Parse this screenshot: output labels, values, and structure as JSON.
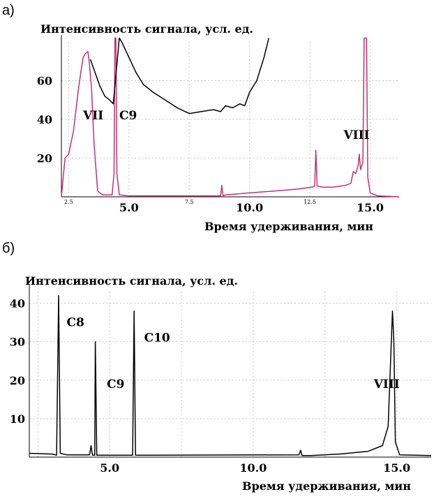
{
  "panels": {
    "a": {
      "label": "а)"
    },
    "b": {
      "label": "б)"
    }
  },
  "chart_data": [
    {
      "type": "line",
      "ylabel": "Интенсивность сигнала, усл. ед.",
      "xlabel": "Время удерживания, мин",
      "xlim": [
        2.2,
        16.2
      ],
      "ylim": [
        0,
        80
      ],
      "y_ticks": [
        20,
        40,
        60
      ],
      "x_ticks": [
        5.0,
        10.0,
        15.0
      ],
      "x_minor_tick_labels": [
        {
          "x": 2.5,
          "label": "2.5"
        },
        {
          "x": 7.5,
          "label": "7.5"
        },
        {
          "x": 12.5,
          "label": "12.5"
        }
      ],
      "grid": true,
      "series": [
        {
          "color": "#c4326f",
          "points": [
            [
              2.2,
              0
            ],
            [
              2.35,
              20
            ],
            [
              2.5,
              22
            ],
            [
              2.7,
              34
            ],
            [
              2.9,
              55
            ],
            [
              3.0,
              64
            ],
            [
              3.1,
              72
            ],
            [
              3.2,
              74
            ],
            [
              3.3,
              75
            ],
            [
              3.35,
              70
            ],
            [
              3.45,
              56
            ],
            [
              3.55,
              28
            ],
            [
              3.7,
              3
            ],
            [
              3.9,
              1
            ],
            [
              4.3,
              1
            ],
            [
              4.38,
              12
            ],
            [
              4.42,
              82
            ],
            [
              4.46,
              82
            ],
            [
              4.5,
              12
            ],
            [
              4.6,
              1
            ],
            [
              5.0,
              0.5
            ],
            [
              8.8,
              0.5
            ],
            [
              8.85,
              6
            ],
            [
              8.9,
              0.5
            ],
            [
              9.0,
              1
            ],
            [
              10.0,
              2
            ],
            [
              11.0,
              3
            ],
            [
              12.0,
              4
            ],
            [
              12.6,
              5
            ],
            [
              12.7,
              5.5
            ],
            [
              12.75,
              24
            ],
            [
              12.8,
              5.5
            ],
            [
              13.0,
              5
            ],
            [
              13.5,
              5
            ],
            [
              14.0,
              6
            ],
            [
              14.2,
              7
            ],
            [
              14.3,
              13
            ],
            [
              14.4,
              12
            ],
            [
              14.5,
              16
            ],
            [
              14.55,
              22
            ],
            [
              14.6,
              14
            ],
            [
              14.7,
              18
            ],
            [
              14.75,
              82
            ],
            [
              14.85,
              82
            ],
            [
              14.9,
              10
            ],
            [
              15.0,
              2
            ],
            [
              15.3,
              0.5
            ],
            [
              16.2,
              0
            ]
          ]
        },
        {
          "color": "#000000",
          "points": [
            [
              3.4,
              71
            ],
            [
              3.6,
              64
            ],
            [
              3.8,
              57
            ],
            [
              4.0,
              52
            ],
            [
              4.2,
              50
            ],
            [
              4.35,
              48
            ],
            [
              4.6,
              82
            ],
            [
              4.7,
              80
            ],
            [
              5.0,
              72
            ],
            [
              5.3,
              64
            ],
            [
              5.6,
              58
            ],
            [
              6.0,
              54
            ],
            [
              6.5,
              50
            ],
            [
              7.0,
              46
            ],
            [
              7.5,
              43
            ],
            [
              8.0,
              44
            ],
            [
              8.5,
              45
            ],
            [
              8.8,
              44
            ],
            [
              9.0,
              47
            ],
            [
              9.3,
              46
            ],
            [
              9.6,
              48
            ],
            [
              9.8,
              47
            ],
            [
              10.0,
              54
            ],
            [
              10.3,
              60
            ],
            [
              10.6,
              72
            ],
            [
              10.8,
              82
            ]
          ]
        }
      ],
      "annotations": [
        {
          "text": "VII",
          "x": 3.1,
          "y": 40
        },
        {
          "text": "C9",
          "x": 4.6,
          "y": 40
        },
        {
          "text": "VIII",
          "x": 13.9,
          "y": 30
        }
      ]
    },
    {
      "type": "line",
      "ylabel": "Интенсивность сигнала, усл. ед.",
      "xlabel": "Время удерживания, мин",
      "xlim": [
        2.2,
        16.2
      ],
      "ylim": [
        0,
        43
      ],
      "y_ticks": [
        10,
        20,
        30,
        40
      ],
      "x_ticks": [
        5.0,
        10.0,
        15.0
      ],
      "grid": true,
      "series": [
        {
          "color": "#000000",
          "points": [
            [
              2.2,
              1
            ],
            [
              3.0,
              0.8
            ],
            [
              3.15,
              0.5
            ],
            [
              3.22,
              42
            ],
            [
              3.28,
              1
            ],
            [
              3.5,
              0.6
            ],
            [
              4.3,
              0.6
            ],
            [
              4.35,
              3
            ],
            [
              4.4,
              0.5
            ],
            [
              4.48,
              0.5
            ],
            [
              4.5,
              30
            ],
            [
              4.55,
              0.5
            ],
            [
              5.8,
              0.5
            ],
            [
              5.85,
              38
            ],
            [
              5.9,
              0.5
            ],
            [
              6.5,
              0.5
            ],
            [
              11.6,
              0.6
            ],
            [
              11.65,
              1.8
            ],
            [
              11.7,
              0.4
            ],
            [
              12.0,
              0.4
            ],
            [
              13.0,
              0.8
            ],
            [
              14.0,
              1.5
            ],
            [
              14.5,
              3
            ],
            [
              14.7,
              8
            ],
            [
              14.8,
              28
            ],
            [
              14.85,
              38
            ],
            [
              14.9,
              30
            ],
            [
              14.95,
              4
            ],
            [
              15.1,
              0.6
            ],
            [
              16.2,
              0.4
            ]
          ]
        }
      ],
      "annotations": [
        {
          "text": "C8",
          "x": 3.5,
          "y": 34
        },
        {
          "text": "C9",
          "x": 4.9,
          "y": 18
        },
        {
          "text": "C10",
          "x": 6.2,
          "y": 30
        },
        {
          "text": "VIII",
          "x": 14.2,
          "y": 18
        }
      ]
    }
  ]
}
